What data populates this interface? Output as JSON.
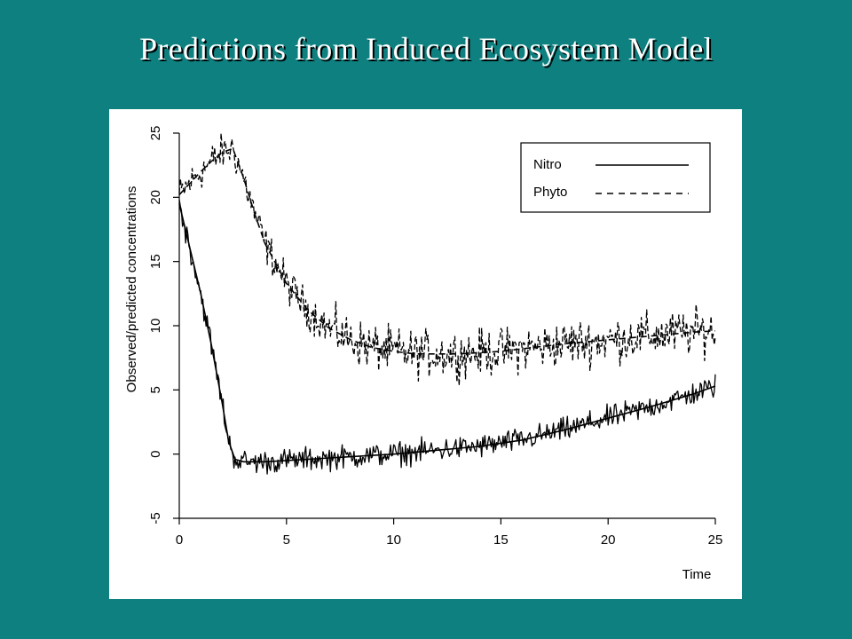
{
  "slide": {
    "title": "Predictions from Induced Ecosystem Model",
    "background_color": "#0e8080",
    "title_color": "#ffffff"
  },
  "chart_data": {
    "type": "line",
    "title": "",
    "xlabel": "Time",
    "ylabel": "Observed/predicted concentrations",
    "xlim": [
      0,
      25
    ],
    "ylim": [
      -5,
      25
    ],
    "x_ticks": [
      0,
      5,
      10,
      15,
      20,
      25
    ],
    "y_ticks": [
      -5,
      0,
      5,
      10,
      15,
      20,
      25
    ],
    "grid": false,
    "legend_position": "top-right",
    "series": [
      {
        "name": "Nitro",
        "line_style": "solid",
        "color": "#000000",
        "predicted": {
          "x": [
            0,
            0.5,
            1,
            1.5,
            2,
            2.3,
            2.6,
            3,
            4,
            5,
            6,
            7,
            8,
            10,
            12,
            14,
            16,
            18,
            20,
            22,
            24,
            25
          ],
          "y": [
            19.5,
            16,
            12.5,
            8.5,
            4,
            1,
            -0.4,
            -0.6,
            -0.6,
            -0.5,
            -0.4,
            -0.3,
            -0.2,
            0,
            0.3,
            0.6,
            1.1,
            1.9,
            2.8,
            3.7,
            4.7,
            5.3
          ]
        }
      },
      {
        "name": "Phyto",
        "line_style": "dashed",
        "color": "#000000",
        "predicted": {
          "x": [
            0,
            0.5,
            1,
            1.5,
            2,
            2.5,
            3,
            3.5,
            4,
            5,
            6,
            7,
            8,
            9,
            10,
            11,
            12,
            13,
            14,
            15,
            16,
            17,
            18,
            20,
            22,
            24,
            25
          ],
          "y": [
            20.2,
            21.1,
            22,
            22.8,
            23.5,
            23.8,
            21.5,
            18.8,
            16.4,
            13.3,
            11.2,
            9.8,
            8.9,
            8.3,
            8.0,
            7.8,
            7.8,
            7.8,
            7.9,
            8.0,
            8.2,
            8.4,
            8.6,
            8.9,
            9.2,
            9.5,
            9.6
          ]
        }
      }
    ],
    "observations": {
      "spacing": 0.05,
      "nitro_spread": 0.9,
      "phyto_spread": 1.4
    }
  }
}
